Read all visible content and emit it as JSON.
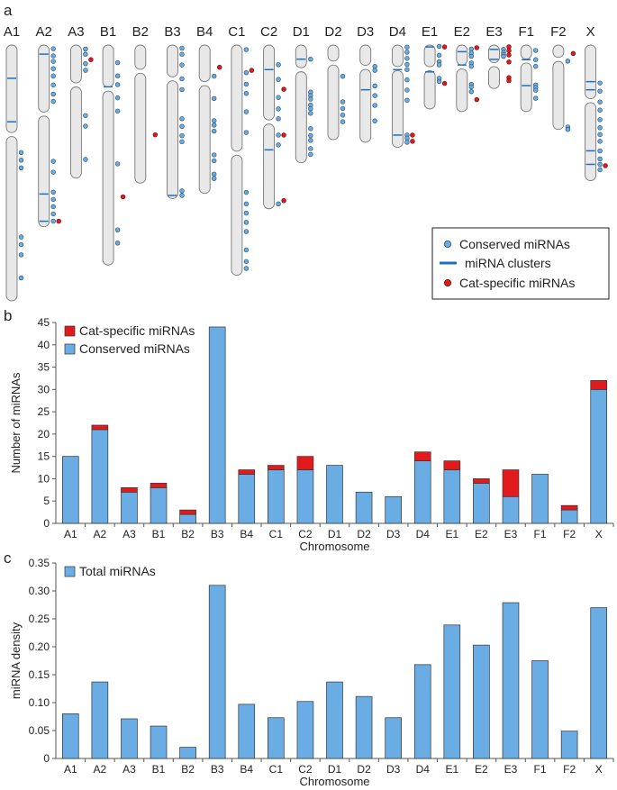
{
  "colors": {
    "conserved": "#6aade4",
    "cat_specific": "#e31a1c",
    "cluster": "#1f6fc1",
    "chromosome_fill": "#e8e8e8",
    "chromosome_stroke": "#777777"
  },
  "panel_a": {
    "label": "a",
    "legend": {
      "conserved": "Conserved miRNAs",
      "clusters": "miRNA clusters",
      "cat_specific": "Cat-specific miRNAs"
    },
    "chromosomes": [
      {
        "name": "A1",
        "len": 1.0,
        "cen": 0.35,
        "clusters": [
          0.13,
          0.3
        ],
        "conserved": [
          0.42,
          0.45,
          0.48,
          0.75,
          0.78,
          0.82,
          0.91
        ],
        "cat": []
      },
      {
        "name": "A2",
        "len": 0.71,
        "cen": 0.38,
        "clusters": [
          0.05,
          0.82,
          0.97
        ],
        "conserved": [
          0.02,
          0.06,
          0.09,
          0.13,
          0.17,
          0.22,
          0.27,
          0.31,
          0.64,
          0.7,
          0.81,
          0.85,
          0.89,
          0.93,
          0.97
        ],
        "cat": [
          0.97
        ]
      },
      {
        "name": "A3",
        "len": 0.52,
        "cen": 0.3,
        "clusters": [],
        "conserved": [
          0.03,
          0.07,
          0.14,
          0.19,
          0.53,
          0.61,
          0.86
        ],
        "cat": [
          0.11
        ]
      },
      {
        "name": "B1",
        "len": 0.86,
        "cen": 0.2,
        "clusters": [
          0.19
        ],
        "conserved": [
          0.08,
          0.14,
          0.18,
          0.24,
          0.3,
          0.54,
          0.84,
          0.9
        ],
        "cat": [
          0.69
        ]
      },
      {
        "name": "B2",
        "len": 0.54,
        "cen": 0.19,
        "clusters": [],
        "conserved": [],
        "cat": [
          0.65
        ]
      },
      {
        "name": "B3",
        "len": 0.6,
        "cen": 0.22,
        "clusters": [
          0.98
        ],
        "conserved": [
          0.02,
          0.06,
          0.13,
          0.22,
          0.29,
          0.48,
          0.53,
          0.59,
          0.63,
          0.95,
          0.98
        ],
        "cat": []
      },
      {
        "name": "B4",
        "len": 0.58,
        "cen": 0.26,
        "clusters": [],
        "conserved": [
          0.21,
          0.36,
          0.51,
          0.54,
          0.58,
          0.74,
          0.78,
          0.87,
          0.9
        ],
        "cat": [
          0.15
        ]
      },
      {
        "name": "C1",
        "len": 0.9,
        "cen": 0.47,
        "clusters": [],
        "conserved": [
          0.02,
          0.12,
          0.17,
          0.21,
          0.29,
          0.38,
          0.64,
          0.69,
          0.73,
          0.77,
          0.81,
          0.89,
          0.94,
          0.97
        ],
        "cat": [
          0.11
        ]
      },
      {
        "name": "C2",
        "len": 0.64,
        "cen": 0.47,
        "clusters": [
          0.15,
          0.64
        ],
        "conserved": [
          0.12,
          0.21,
          0.32,
          0.39,
          0.45,
          0.55,
          0.61,
          0.97
        ],
        "cat": [
          0.27,
          0.55,
          0.95
        ]
      },
      {
        "name": "D1",
        "len": 0.46,
        "cen": 0.21,
        "clusters": [
          0.12
        ],
        "conserved": [
          0.12,
          0.4,
          0.43,
          0.46,
          0.51,
          0.54,
          0.58,
          0.71,
          0.77,
          0.81,
          0.88,
          0.93
        ],
        "cat": []
      },
      {
        "name": "D2",
        "len": 0.37,
        "cen": 0.19,
        "clusters": [],
        "conserved": [
          0.33,
          0.6,
          0.67,
          0.74,
          0.81
        ],
        "cat": []
      },
      {
        "name": "D3",
        "len": 0.38,
        "cen": 0.23,
        "clusters": [
          0.46
        ],
        "conserved": [
          0.22,
          0.26,
          0.42,
          0.52,
          0.62,
          0.78
        ],
        "cat": []
      },
      {
        "name": "D4",
        "len": 0.4,
        "cen": 0.23,
        "clusters": [
          0.24,
          0.88
        ],
        "conserved": [
          0.02,
          0.07,
          0.13,
          0.19,
          0.24,
          0.34,
          0.44,
          0.54,
          0.88,
          0.91,
          0.95
        ],
        "cat": [
          0.88,
          0.94
        ]
      },
      {
        "name": "E1",
        "len": 0.25,
        "cen": 0.37,
        "clusters": [
          0.03,
          0.42
        ],
        "conserved": [
          0.02,
          0.16,
          0.26,
          0.31,
          0.52,
          0.57
        ],
        "cat": [
          0.03,
          0.6
        ]
      },
      {
        "name": "E2",
        "len": 0.26,
        "cen": 0.33,
        "clusters": [
          0.1,
          0.3
        ],
        "conserved": [
          0.06,
          0.12,
          0.17,
          0.27,
          0.32,
          0.59,
          0.63,
          0.7
        ],
        "cat": [
          0.04,
          0.82
        ]
      },
      {
        "name": "E3",
        "len": 0.17,
        "cen": 0.45,
        "clusters": [
          0.1,
          0.33
        ],
        "conserved": [
          0.1,
          0.17,
          0.22,
          0.26
        ],
        "cat": [
          0.04,
          0.13,
          0.23,
          0.39,
          0.75,
          0.82
        ]
      },
      {
        "name": "F1",
        "len": 0.26,
        "cen": 0.24,
        "clusters": [
          0.22,
          0.61
        ],
        "conserved": [
          0.08,
          0.22,
          0.32,
          0.6,
          0.64,
          0.68,
          0.8
        ],
        "cat": []
      },
      {
        "name": "F2",
        "len": 0.33,
        "cen": 0.17,
        "clusters": [],
        "conserved": [
          0.19,
          0.97,
          1.0
        ],
        "cat": [
          0.1
        ]
      },
      {
        "name": "X",
        "len": 0.53,
        "cen": 0.41,
        "clusters": [
          0.27,
          0.33,
          0.78,
          0.88
        ],
        "conserved": [
          0.28,
          0.34,
          0.42,
          0.48,
          0.55,
          0.61,
          0.66,
          0.71,
          0.78,
          0.84,
          0.88,
          0.92
        ],
        "cat": [
          0.89
        ]
      }
    ]
  },
  "chart_data": [
    {
      "type": "bar",
      "panel": "b",
      "stacked": true,
      "categories": [
        "A1",
        "A2",
        "A3",
        "B1",
        "B2",
        "B3",
        "B4",
        "C1",
        "C2",
        "D1",
        "D2",
        "D3",
        "D4",
        "E1",
        "E2",
        "E3",
        "F1",
        "F2",
        "X"
      ],
      "series": [
        {
          "name": "Conserved miRNAs",
          "values": [
            15,
            21,
            7,
            8,
            2,
            44,
            11,
            12,
            12,
            13,
            7,
            6,
            14,
            12,
            9,
            6,
            11,
            3,
            30
          ]
        },
        {
          "name": "Cat-specific miRNAs",
          "values": [
            0,
            1,
            1,
            1,
            1,
            0,
            1,
            1,
            3,
            0,
            0,
            0,
            2,
            2,
            1,
            6,
            0,
            1,
            2
          ]
        }
      ],
      "legend_order": [
        "Cat-specific miRNAs",
        "Conserved miRNAs"
      ],
      "title": "",
      "xlabel": "Chromosome",
      "ylabel": "Number of miRNAs",
      "ylim": [
        0,
        45
      ],
      "yticks": [
        0,
        5,
        10,
        15,
        20,
        25,
        30,
        35,
        40,
        45
      ],
      "ytick_labels": [
        "0",
        "5",
        "10",
        "15",
        "20",
        "25",
        "30",
        "35",
        "40",
        "45"
      ],
      "legend": "top-left",
      "grid": false
    },
    {
      "type": "bar",
      "panel": "c",
      "categories": [
        "A1",
        "A2",
        "A3",
        "B1",
        "B2",
        "B3",
        "B4",
        "C1",
        "C2",
        "D1",
        "D2",
        "D3",
        "D4",
        "E1",
        "E2",
        "E3",
        "F1",
        "F2",
        "X"
      ],
      "series": [
        {
          "name": "Total miRNAs",
          "values": [
            0.08,
            0.137,
            0.071,
            0.058,
            0.02,
            0.31,
            0.097,
            0.073,
            0.102,
            0.137,
            0.111,
            0.073,
            0.168,
            0.239,
            0.203,
            0.279,
            0.175,
            0.049,
            0.27
          ]
        }
      ],
      "title": "",
      "xlabel": "Chromosome",
      "ylabel": "miRNA density",
      "ylim": [
        0,
        0.35
      ],
      "yticks": [
        0,
        0.05,
        0.1,
        0.15,
        0.2,
        0.25,
        0.3,
        0.35
      ],
      "ytick_labels": [
        "0",
        "0.05",
        "0.10",
        "0.15",
        "0.20",
        "0.25",
        "0.30",
        "0.35"
      ],
      "legend": "top-left",
      "grid": false
    }
  ]
}
